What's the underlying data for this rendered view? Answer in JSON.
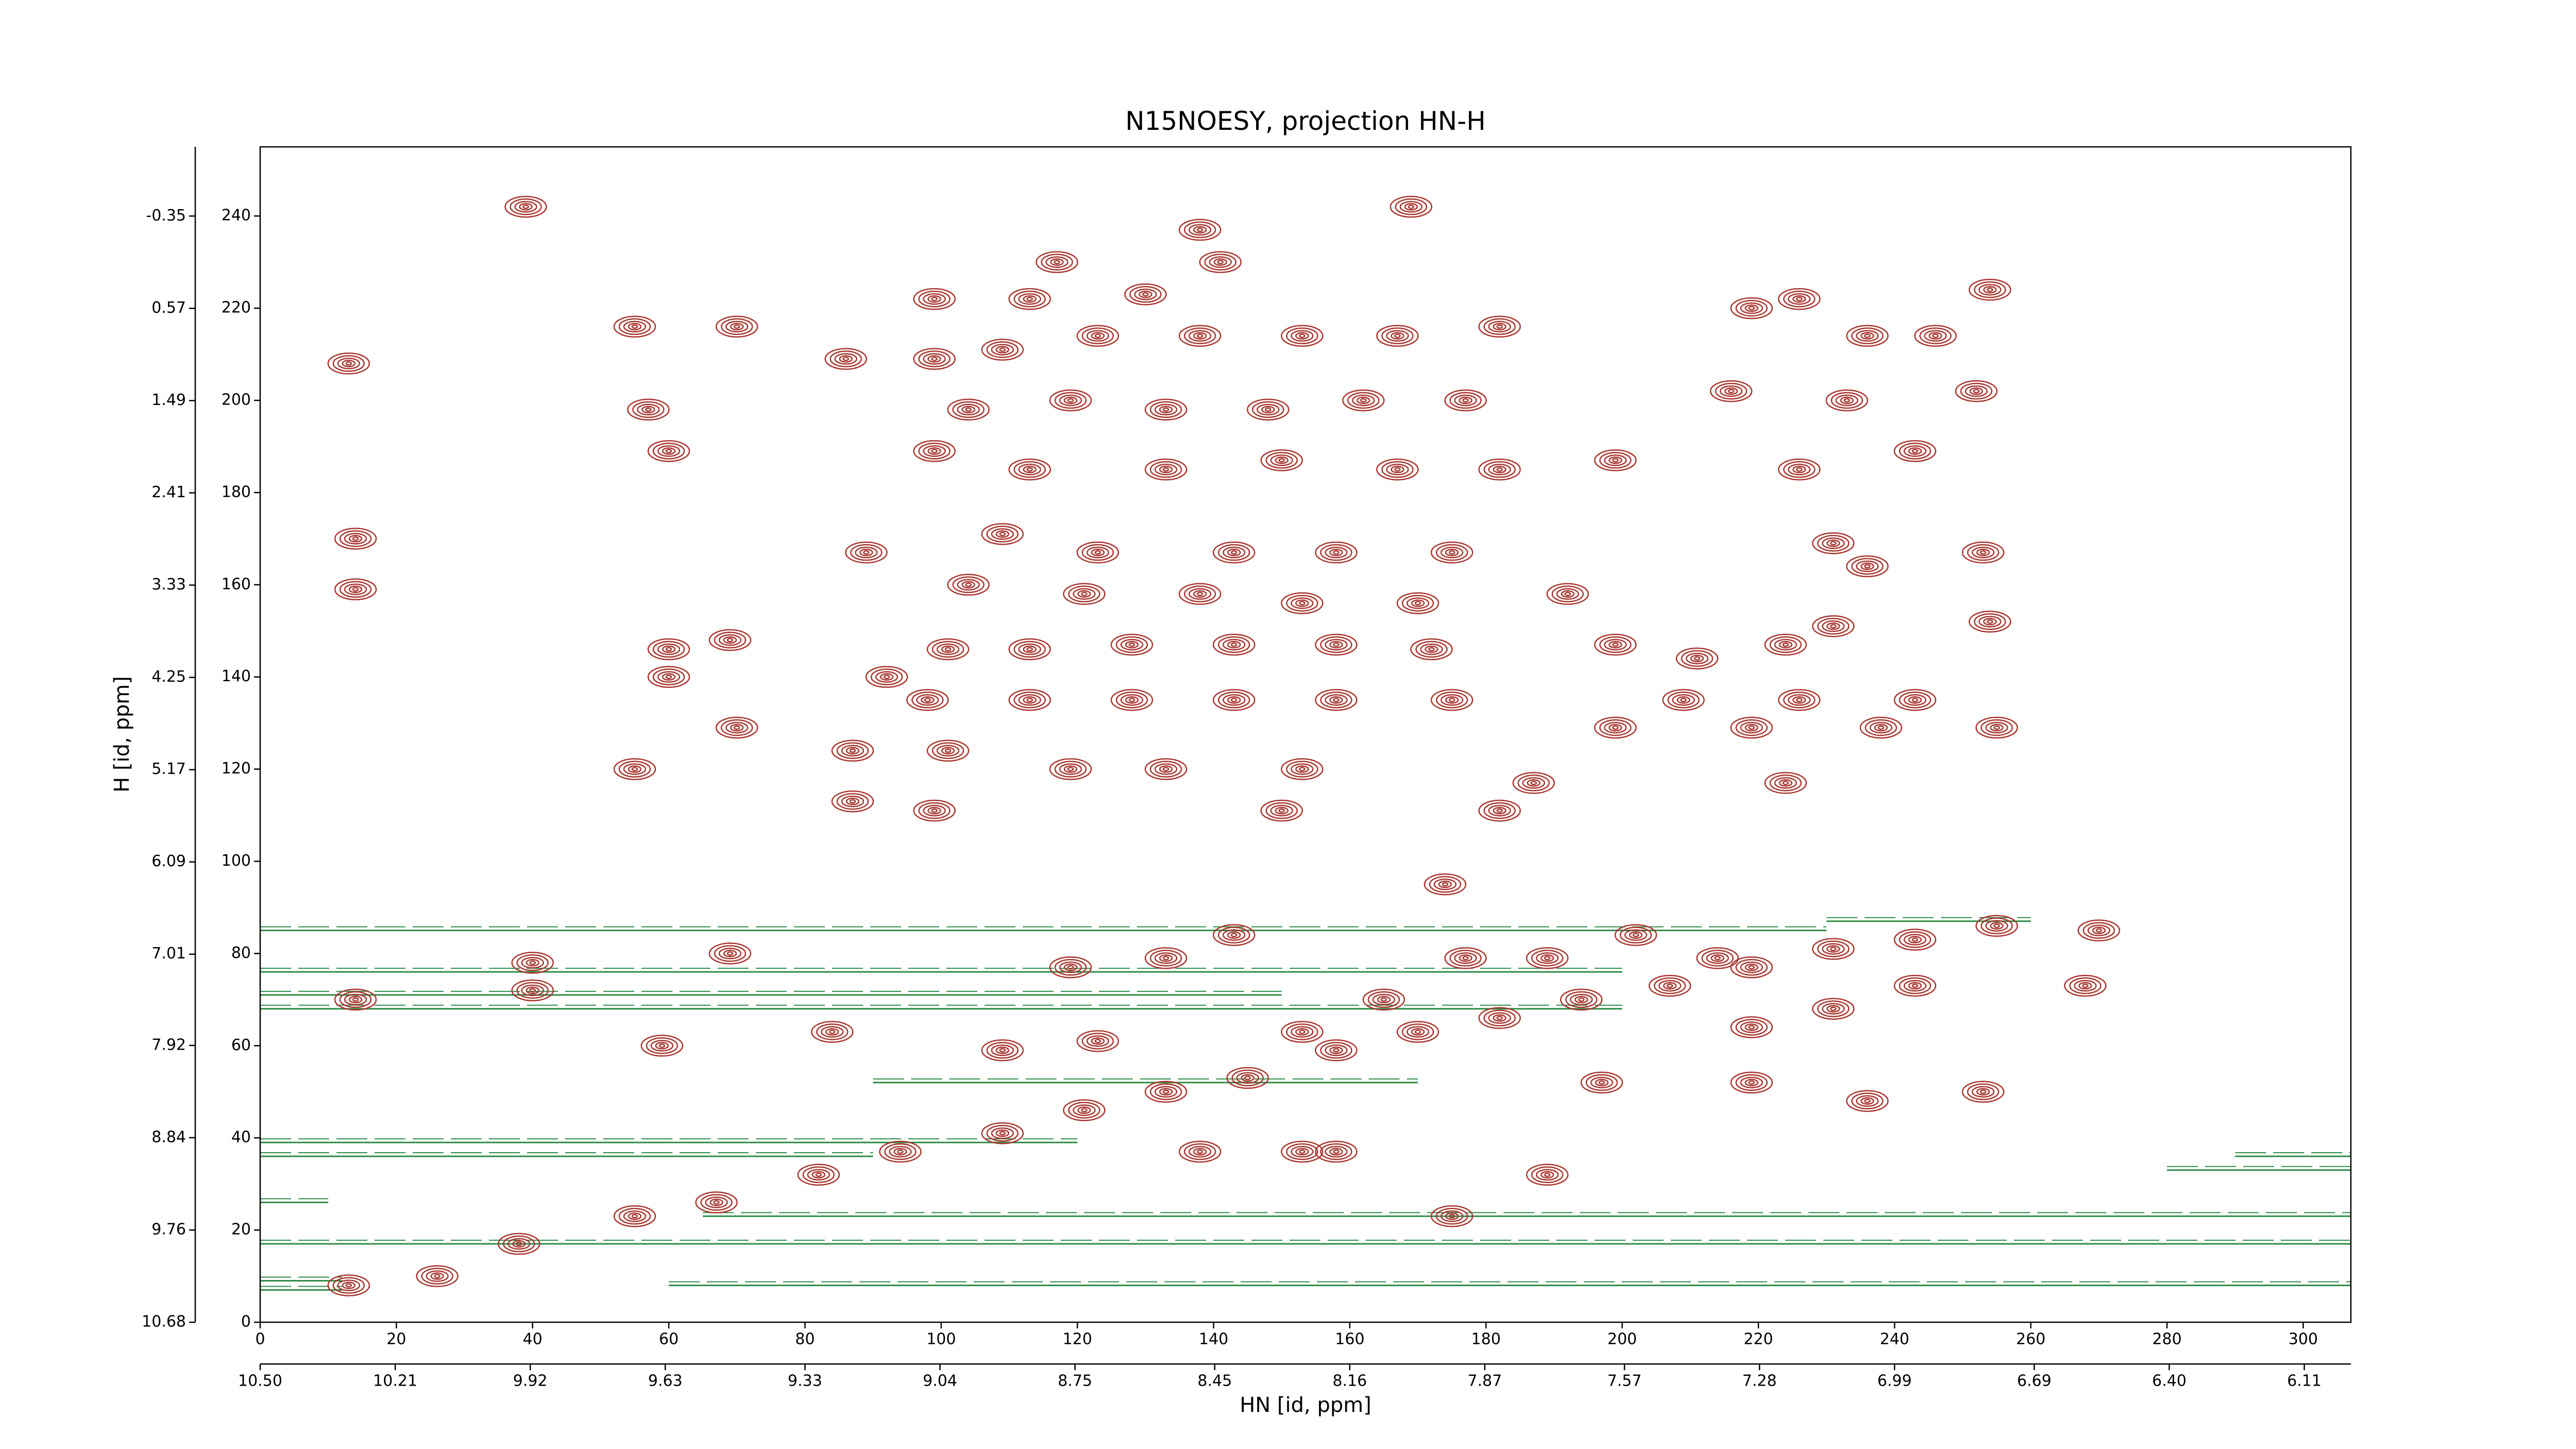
{
  "chart_data": {
    "type": "contour",
    "title": "N15NOESY, projection HN-H",
    "xlabel": "HN [id, ppm]",
    "ylabel": "H [id, ppm]",
    "xlim": [
      0,
      307
    ],
    "ylim": [
      0,
      255
    ],
    "xticks": [
      0,
      20,
      40,
      60,
      80,
      100,
      120,
      140,
      160,
      180,
      200,
      220,
      240,
      260,
      280,
      300
    ],
    "yticks": [
      0,
      20,
      40,
      60,
      80,
      100,
      120,
      140,
      160,
      180,
      200,
      220,
      240
    ],
    "x2lim": [
      10.5,
      6.01
    ],
    "x2ticks": [
      {
        "value": 10.5,
        "label": "10.50"
      },
      10.21,
      9.92,
      9.63,
      9.33,
      9.04,
      8.75,
      8.45,
      8.16,
      7.87,
      7.57,
      7.28,
      6.99,
      6.69,
      {
        "value": 6.4,
        "label": "6.40"
      },
      6.11
    ],
    "y2lim": [
      10.68,
      -1.04
    ],
    "y2ticks": [
      10.68,
      9.76,
      8.84,
      7.92,
      7.01,
      6.09,
      5.17,
      4.25,
      3.33,
      2.41,
      1.49,
      0.57,
      -0.35
    ],
    "peaks": {
      "color": "#a8352e",
      "x": [
        39,
        138,
        169,
        141,
        117,
        99,
        113,
        130,
        254,
        55,
        70,
        86,
        99,
        109,
        123,
        138,
        153,
        167,
        182,
        219,
        226,
        236,
        246,
        13,
        104,
        119,
        133,
        148,
        162,
        177,
        216,
        233,
        252,
        60,
        57,
        99,
        113,
        133,
        150,
        167,
        182,
        199,
        226,
        243,
        14,
        14,
        89,
        109,
        123,
        143,
        158,
        175,
        231,
        253,
        104,
        121,
        138,
        153,
        170,
        192,
        236,
        60,
        60,
        69,
        92,
        101,
        113,
        128,
        143,
        158,
        172,
        199,
        211,
        224,
        231,
        254,
        98,
        113,
        128,
        143,
        158,
        175,
        209,
        226,
        243,
        70,
        199,
        219,
        238,
        255,
        55,
        87,
        101,
        119,
        133,
        153,
        187,
        224,
        87,
        99,
        150,
        182,
        174,
        40,
        14,
        40,
        69,
        59,
        13,
        26,
        38,
        55,
        67,
        82,
        94,
        109,
        121,
        133,
        145,
        158,
        170,
        182,
        194,
        207,
        219,
        231,
        243,
        255,
        270,
        243,
        231,
        268,
        219,
        84,
        109,
        123,
        153,
        165,
        177,
        189,
        202,
        214,
        153,
        138,
        189,
        158,
        236,
        253,
        219,
        197,
        175,
        119,
        133,
        143
      ],
      "y": [
        242,
        237,
        242,
        230,
        230,
        222,
        222,
        223,
        224,
        216,
        216,
        209,
        209,
        211,
        214,
        214,
        214,
        214,
        216,
        220,
        222,
        214,
        214,
        208,
        198,
        200,
        198,
        198,
        200,
        200,
        202,
        200,
        202,
        189,
        198,
        189,
        185,
        185,
        187,
        185,
        185,
        187,
        185,
        189,
        170,
        159,
        167,
        171,
        167,
        167,
        167,
        167,
        169,
        167,
        160,
        158,
        158,
        156,
        156,
        158,
        164,
        146,
        140,
        148,
        140,
        146,
        146,
        147,
        147,
        147,
        146,
        147,
        144,
        147,
        151,
        152,
        135,
        135,
        135,
        135,
        135,
        135,
        135,
        135,
        135,
        129,
        129,
        129,
        129,
        129,
        120,
        124,
        124,
        120,
        120,
        120,
        117,
        117,
        113,
        111,
        111,
        111,
        95,
        78,
        70,
        72,
        80,
        60,
        8,
        10,
        17,
        23,
        26,
        32,
        37,
        41,
        46,
        50,
        53,
        59,
        63,
        66,
        70,
        73,
        77,
        81,
        83,
        86,
        85,
        73,
        68,
        73,
        64,
        63,
        59,
        61,
        63,
        70,
        79,
        79,
        84,
        79,
        37,
        37,
        32,
        37,
        48,
        50,
        52,
        52,
        23,
        77,
        79,
        84
      ]
    },
    "ridges": {
      "color": "#2e8b46",
      "y": [
        7,
        9,
        8,
        17,
        23,
        26,
        36,
        39,
        33,
        36,
        52,
        68,
        71,
        76,
        85,
        87
      ],
      "x0": [
        0,
        0,
        60,
        0,
        65,
        0,
        0,
        0,
        280,
        290,
        90,
        0,
        0,
        0,
        0,
        230
      ],
      "x1": [
        12,
        12,
        307,
        307,
        307,
        10,
        90,
        120,
        307,
        307,
        170,
        200,
        150,
        200,
        230,
        260
      ]
    }
  }
}
